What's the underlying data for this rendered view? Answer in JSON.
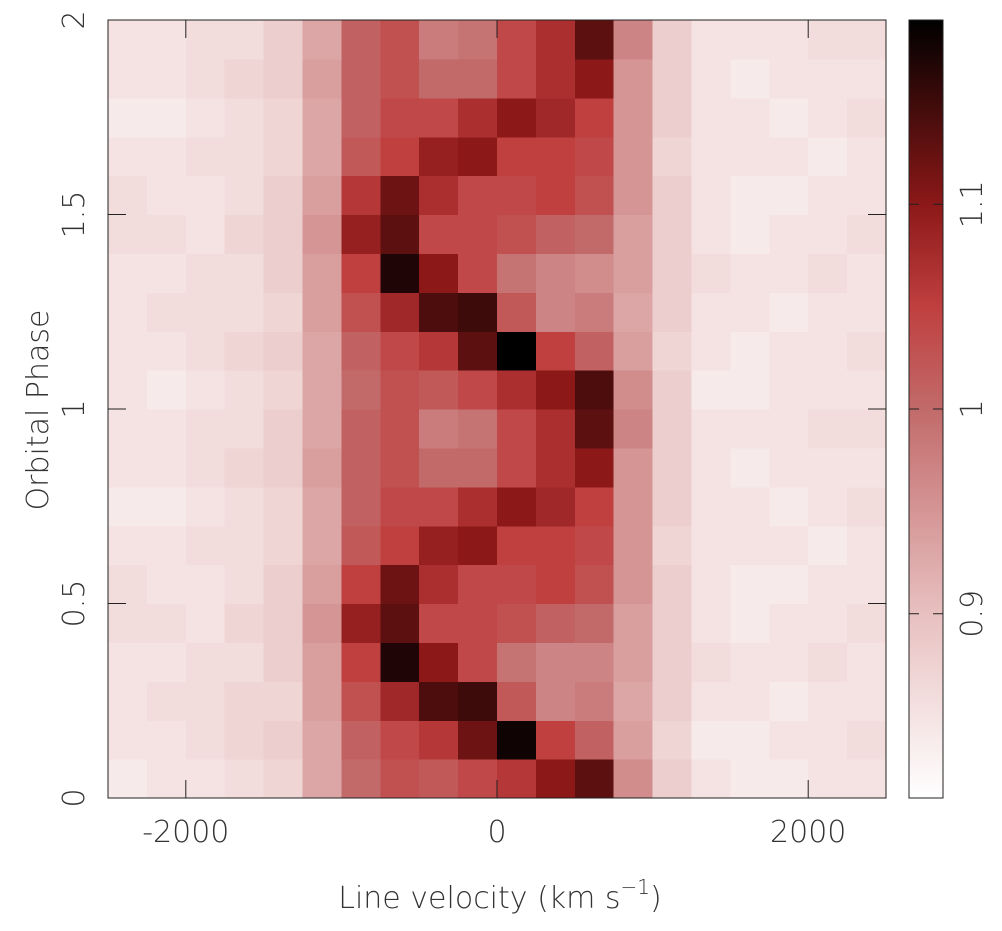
{
  "chart_data": {
    "type": "heatmap",
    "ylabel": "Orbital Phase",
    "xlabel_parts": [
      "Line velocity (km s",
      "−1",
      ")"
    ],
    "xlim": [
      -2500,
      2500
    ],
    "ylim": [
      0,
      2
    ],
    "xticks": [
      -2000,
      0,
      2000
    ],
    "yticks": [
      0,
      0.5,
      1,
      1.5,
      2
    ],
    "xbins": [
      -2500,
      -2250,
      -2000,
      -1750,
      -1500,
      -1250,
      -1000,
      -750,
      -500,
      -250,
      0,
      250,
      500,
      750,
      1000,
      1250,
      1500,
      1750,
      2000,
      2250,
      2500
    ],
    "ybins": [
      0,
      0.1,
      0.2,
      0.3,
      0.4,
      0.5,
      0.6,
      0.7,
      0.8,
      0.9,
      1.0,
      1.1,
      1.2,
      1.3,
      1.4,
      1.5,
      1.6,
      1.7,
      1.8,
      1.9,
      2.0
    ],
    "values": [
      [
        0.84,
        0.85,
        0.85,
        0.86,
        0.87,
        0.93,
        1.0,
        1.03,
        1.02,
        1.04,
        1.06,
        1.1,
        1.13,
        0.96,
        0.88,
        0.85,
        0.84,
        0.84,
        0.85,
        0.85
      ],
      [
        0.85,
        0.85,
        0.86,
        0.87,
        0.88,
        0.93,
        1.01,
        1.04,
        1.06,
        1.12,
        1.18,
        1.05,
        1.01,
        0.94,
        0.87,
        0.84,
        0.84,
        0.85,
        0.85,
        0.86
      ],
      [
        0.85,
        0.86,
        0.86,
        0.87,
        0.87,
        0.94,
        1.03,
        1.08,
        1.14,
        1.15,
        1.02,
        0.97,
        0.98,
        0.93,
        0.88,
        0.85,
        0.85,
        0.84,
        0.85,
        0.85
      ],
      [
        0.85,
        0.85,
        0.86,
        0.86,
        0.88,
        0.94,
        1.05,
        1.17,
        1.1,
        1.04,
        0.99,
        0.97,
        0.97,
        0.94,
        0.88,
        0.86,
        0.85,
        0.85,
        0.86,
        0.85
      ],
      [
        0.86,
        0.86,
        0.85,
        0.87,
        0.88,
        0.95,
        1.09,
        1.13,
        1.04,
        1.04,
        1.03,
        1.01,
        1.0,
        0.94,
        0.88,
        0.85,
        0.84,
        0.85,
        0.85,
        0.86
      ],
      [
        0.86,
        0.85,
        0.85,
        0.86,
        0.88,
        0.94,
        1.05,
        1.12,
        1.07,
        1.04,
        1.04,
        1.05,
        1.03,
        0.95,
        0.88,
        0.85,
        0.84,
        0.84,
        0.85,
        0.85
      ],
      [
        0.85,
        0.85,
        0.86,
        0.86,
        0.87,
        0.93,
        1.02,
        1.05,
        1.09,
        1.1,
        1.05,
        1.05,
        1.04,
        0.95,
        0.87,
        0.85,
        0.85,
        0.85,
        0.84,
        0.85
      ],
      [
        0.84,
        0.84,
        0.85,
        0.86,
        0.87,
        0.93,
        1.01,
        1.04,
        1.04,
        1.07,
        1.1,
        1.08,
        1.05,
        0.95,
        0.88,
        0.85,
        0.85,
        0.84,
        0.85,
        0.86
      ],
      [
        0.85,
        0.85,
        0.86,
        0.87,
        0.88,
        0.94,
        1.01,
        1.03,
        1.0,
        1.0,
        1.04,
        1.07,
        1.1,
        0.95,
        0.88,
        0.85,
        0.84,
        0.85,
        0.85,
        0.85
      ],
      [
        0.85,
        0.85,
        0.86,
        0.86,
        0.88,
        0.93,
        1.01,
        1.03,
        0.98,
        0.99,
        1.04,
        1.07,
        1.13,
        0.97,
        0.88,
        0.85,
        0.85,
        0.85,
        0.86,
        0.86
      ],
      [
        0.85,
        0.84,
        0.85,
        0.86,
        0.87,
        0.93,
        1.0,
        1.03,
        1.02,
        1.04,
        1.07,
        1.1,
        1.14,
        0.96,
        0.88,
        0.84,
        0.84,
        0.85,
        0.85,
        0.85
      ],
      [
        0.85,
        0.85,
        0.86,
        0.87,
        0.88,
        0.93,
        1.01,
        1.04,
        1.06,
        1.13,
        1.19,
        1.05,
        1.01,
        0.94,
        0.87,
        0.85,
        0.84,
        0.85,
        0.85,
        0.86
      ],
      [
        0.85,
        0.86,
        0.86,
        0.86,
        0.87,
        0.94,
        1.03,
        1.08,
        1.14,
        1.15,
        1.02,
        0.97,
        0.98,
        0.93,
        0.88,
        0.85,
        0.85,
        0.84,
        0.85,
        0.85
      ],
      [
        0.85,
        0.85,
        0.86,
        0.86,
        0.88,
        0.94,
        1.05,
        1.17,
        1.1,
        1.04,
        0.99,
        0.97,
        0.96,
        0.94,
        0.88,
        0.86,
        0.85,
        0.85,
        0.86,
        0.85
      ],
      [
        0.86,
        0.86,
        0.85,
        0.87,
        0.88,
        0.95,
        1.09,
        1.13,
        1.04,
        1.04,
        1.03,
        1.01,
        1.0,
        0.94,
        0.88,
        0.85,
        0.84,
        0.85,
        0.85,
        0.86
      ],
      [
        0.86,
        0.85,
        0.85,
        0.86,
        0.88,
        0.94,
        1.06,
        1.12,
        1.07,
        1.04,
        1.04,
        1.05,
        1.03,
        0.95,
        0.88,
        0.85,
        0.84,
        0.84,
        0.85,
        0.85
      ],
      [
        0.85,
        0.85,
        0.86,
        0.86,
        0.87,
        0.93,
        1.02,
        1.05,
        1.09,
        1.1,
        1.05,
        1.05,
        1.04,
        0.95,
        0.87,
        0.85,
        0.85,
        0.85,
        0.84,
        0.85
      ],
      [
        0.84,
        0.84,
        0.85,
        0.86,
        0.87,
        0.93,
        1.01,
        1.04,
        1.04,
        1.07,
        1.1,
        1.08,
        1.05,
        0.95,
        0.88,
        0.85,
        0.85,
        0.84,
        0.85,
        0.86
      ],
      [
        0.85,
        0.85,
        0.86,
        0.87,
        0.88,
        0.94,
        1.01,
        1.03,
        1.0,
        1.0,
        1.04,
        1.07,
        1.1,
        0.95,
        0.88,
        0.85,
        0.84,
        0.85,
        0.85,
        0.85
      ],
      [
        0.85,
        0.85,
        0.86,
        0.86,
        0.88,
        0.93,
        1.01,
        1.03,
        0.98,
        0.99,
        1.04,
        1.07,
        1.13,
        0.97,
        0.88,
        0.85,
        0.85,
        0.85,
        0.86,
        0.86
      ]
    ],
    "clim": [
      0.81,
      1.19
    ],
    "cticks": [
      0.9,
      1,
      1.1
    ],
    "colormap": [
      {
        "value": 0.81,
        "color": "#ffffff"
      },
      {
        "value": 0.9,
        "color": "#e8c0c0"
      },
      {
        "value": 1.0,
        "color": "#c26a6a"
      },
      {
        "value": 1.05,
        "color": "#c03f3f"
      },
      {
        "value": 1.1,
        "color": "#8c1818"
      },
      {
        "value": 1.19,
        "color": "#000000"
      }
    ]
  }
}
